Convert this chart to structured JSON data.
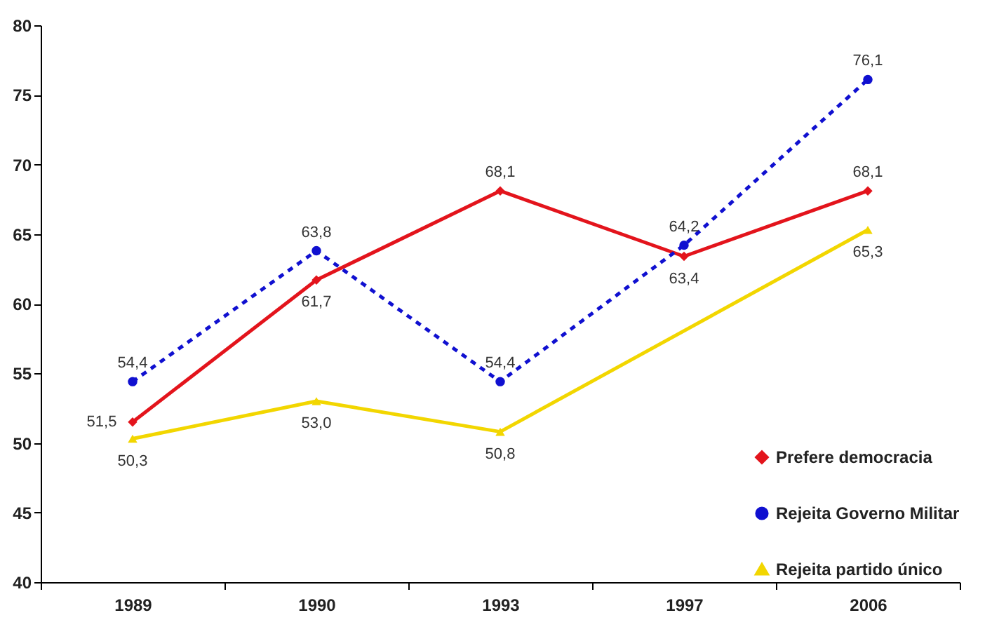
{
  "chart_data": {
    "type": "line",
    "categories": [
      "1989",
      "1990",
      "1993",
      "1997",
      "2006"
    ],
    "series": [
      {
        "name": "Prefere democracia",
        "color": "#e3141c",
        "marker": "diamond",
        "line_style": "solid",
        "values": [
          51.5,
          61.7,
          68.1,
          63.4,
          68.1
        ],
        "value_labels": [
          "51,5",
          "61,7",
          "68,1",
          "63,4",
          "68,1"
        ]
      },
      {
        "name": "Rejeita Governo Militar",
        "color": "#1010d0",
        "marker": "circle",
        "line_style": "dashed",
        "values": [
          54.4,
          63.8,
          54.4,
          64.2,
          76.1
        ],
        "value_labels": [
          "54,4",
          "63,8",
          "54,4",
          "64,2",
          "76,1"
        ]
      },
      {
        "name": "Rejeita partido único",
        "color": "#f2d600",
        "marker": "triangle",
        "line_style": "solid",
        "values": [
          50.3,
          53.0,
          50.8,
          null,
          65.3
        ],
        "value_labels": [
          "50,3",
          "53,0",
          "50,8",
          null,
          "65,3"
        ]
      }
    ],
    "ylim": [
      40,
      80
    ],
    "yticks": [
      40,
      45,
      50,
      55,
      60,
      65,
      70,
      75,
      80
    ],
    "grid": false,
    "legend": "bottom right"
  }
}
